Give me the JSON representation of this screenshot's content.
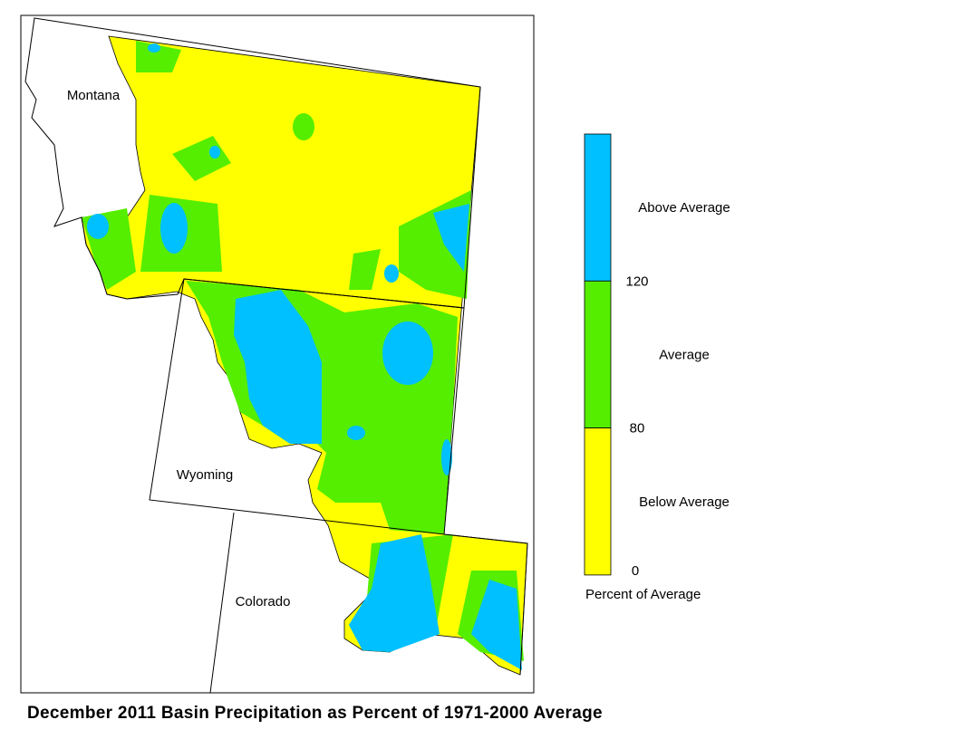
{
  "title": "December 2011 Basin Precipitation as Percent of 1971-2000 Average",
  "map": {
    "states": [
      "Montana",
      "Wyoming",
      "Colorado"
    ]
  },
  "legend": {
    "title": "Percent of Average",
    "classes": [
      {
        "label": "Above Average",
        "color": "#00c0ff"
      },
      {
        "label": "Average",
        "color": "#55ee00"
      },
      {
        "label": "Below Average",
        "color": "#ffff00"
      }
    ],
    "ticks": [
      120,
      80,
      0
    ]
  }
}
